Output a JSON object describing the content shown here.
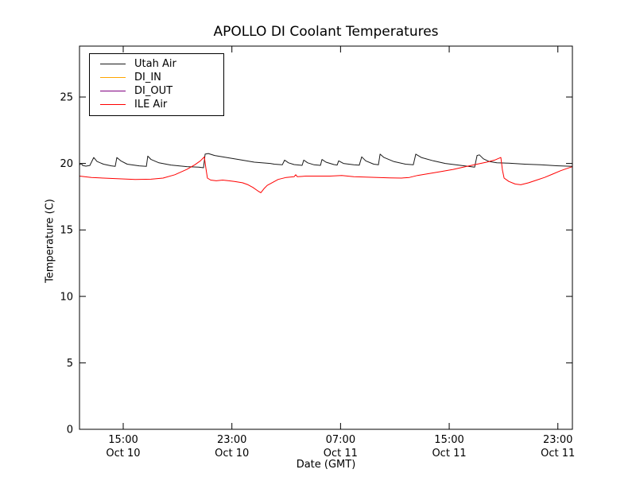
{
  "figure": {
    "background": "#ffffff",
    "spine_color": "#000000"
  },
  "chart_data": {
    "type": "line",
    "title": "APOLLO DI Coolant Temperatures",
    "xlabel": "Date (GMT)",
    "ylabel": "Temperature (C)",
    "x_unit": "hours since Oct 10 00:00 GMT",
    "xlim": [
      11.78,
      48.07
    ],
    "ylim": [
      0,
      28.83
    ],
    "grid": false,
    "legend_position": "upper left",
    "yticks": [
      0,
      5,
      10,
      15,
      20,
      25
    ],
    "xticks": [
      {
        "value": 15,
        "line1": "15:00",
        "line2": "Oct 10"
      },
      {
        "value": 23,
        "line1": "23:00",
        "line2": "Oct 10"
      },
      {
        "value": 31,
        "line1": "07:00",
        "line2": "Oct 11"
      },
      {
        "value": 39,
        "line1": "15:00",
        "line2": "Oct 11"
      },
      {
        "value": 47,
        "line1": "23:00",
        "line2": "Oct 11"
      }
    ],
    "series": [
      {
        "name": "Utah Air",
        "color": "#1a1a1a",
        "points": [
          [
            11.78,
            19.9
          ],
          [
            11.9,
            20.0
          ],
          [
            12.01,
            19.85
          ],
          [
            12.25,
            19.8
          ],
          [
            12.54,
            19.85
          ],
          [
            12.83,
            20.45
          ],
          [
            13.07,
            20.15
          ],
          [
            13.54,
            19.95
          ],
          [
            14.12,
            19.82
          ],
          [
            14.41,
            19.78
          ],
          [
            14.53,
            20.45
          ],
          [
            14.82,
            20.2
          ],
          [
            15.29,
            19.95
          ],
          [
            16.17,
            19.82
          ],
          [
            16.7,
            19.78
          ],
          [
            16.81,
            20.55
          ],
          [
            17.05,
            20.3
          ],
          [
            17.63,
            20.05
          ],
          [
            18.51,
            19.88
          ],
          [
            19.68,
            19.76
          ],
          [
            20.56,
            19.72
          ],
          [
            20.91,
            19.68
          ],
          [
            21.03,
            20.7
          ],
          [
            21.26,
            20.75
          ],
          [
            21.73,
            20.6
          ],
          [
            22.61,
            20.45
          ],
          [
            23.49,
            20.3
          ],
          [
            24.66,
            20.1
          ],
          [
            25.83,
            20.0
          ],
          [
            26.12,
            19.95
          ],
          [
            26.71,
            19.9
          ],
          [
            26.88,
            20.25
          ],
          [
            27.17,
            20.05
          ],
          [
            27.58,
            19.92
          ],
          [
            28.17,
            19.86
          ],
          [
            28.29,
            20.25
          ],
          [
            28.58,
            20.05
          ],
          [
            29.05,
            19.9
          ],
          [
            29.52,
            19.86
          ],
          [
            29.63,
            20.3
          ],
          [
            29.93,
            20.1
          ],
          [
            30.51,
            19.92
          ],
          [
            30.75,
            19.88
          ],
          [
            30.86,
            20.2
          ],
          [
            31.21,
            20.0
          ],
          [
            31.97,
            19.9
          ],
          [
            32.38,
            19.87
          ],
          [
            32.56,
            20.5
          ],
          [
            32.85,
            20.2
          ],
          [
            33.44,
            19.95
          ],
          [
            33.79,
            19.9
          ],
          [
            33.91,
            20.7
          ],
          [
            34.2,
            20.45
          ],
          [
            34.9,
            20.15
          ],
          [
            35.78,
            19.95
          ],
          [
            36.36,
            19.9
          ],
          [
            36.54,
            20.7
          ],
          [
            36.95,
            20.45
          ],
          [
            37.83,
            20.2
          ],
          [
            38.71,
            20.0
          ],
          [
            39.88,
            19.85
          ],
          [
            40.87,
            19.72
          ],
          [
            41.05,
            20.6
          ],
          [
            41.22,
            20.65
          ],
          [
            41.52,
            20.35
          ],
          [
            41.93,
            20.15
          ],
          [
            42.51,
            20.05
          ],
          [
            43.39,
            20.02
          ],
          [
            44.56,
            19.95
          ],
          [
            45.73,
            19.9
          ],
          [
            46.9,
            19.83
          ],
          [
            48.07,
            19.78
          ]
        ]
      },
      {
        "name": "DI_IN",
        "color": "#ffa500",
        "points": [
          [
            11.78,
            0
          ],
          [
            48.07,
            0
          ]
        ]
      },
      {
        "name": "DI_OUT",
        "color": "#800080",
        "points": [
          [
            11.78,
            0
          ],
          [
            48.07,
            0
          ]
        ]
      },
      {
        "name": "ILE Air",
        "color": "#ff0000",
        "points": [
          [
            11.78,
            19.05
          ],
          [
            12.66,
            18.95
          ],
          [
            13.54,
            18.9
          ],
          [
            14.71,
            18.85
          ],
          [
            15.88,
            18.8
          ],
          [
            17.05,
            18.82
          ],
          [
            17.93,
            18.9
          ],
          [
            18.8,
            19.15
          ],
          [
            19.68,
            19.55
          ],
          [
            20.27,
            19.9
          ],
          [
            20.68,
            20.2
          ],
          [
            20.97,
            20.5
          ],
          [
            21.09,
            19.6
          ],
          [
            21.2,
            18.9
          ],
          [
            21.44,
            18.75
          ],
          [
            21.85,
            18.7
          ],
          [
            22.32,
            18.75
          ],
          [
            22.78,
            18.7
          ],
          [
            23.19,
            18.65
          ],
          [
            23.78,
            18.55
          ],
          [
            24.19,
            18.4
          ],
          [
            24.54,
            18.2
          ],
          [
            24.89,
            17.95
          ],
          [
            25.13,
            17.8
          ],
          [
            25.36,
            18.1
          ],
          [
            25.6,
            18.35
          ],
          [
            25.95,
            18.55
          ],
          [
            26.41,
            18.8
          ],
          [
            27.0,
            18.95
          ],
          [
            27.58,
            19.0
          ],
          [
            27.7,
            19.15
          ],
          [
            27.82,
            19.0
          ],
          [
            28.46,
            19.05
          ],
          [
            29.34,
            19.05
          ],
          [
            30.22,
            19.05
          ],
          [
            31.09,
            19.1
          ],
          [
            31.97,
            19.0
          ],
          [
            32.85,
            18.97
          ],
          [
            33.73,
            18.95
          ],
          [
            34.61,
            18.92
          ],
          [
            35.49,
            18.9
          ],
          [
            36.07,
            18.95
          ],
          [
            36.66,
            19.1
          ],
          [
            37.54,
            19.25
          ],
          [
            38.41,
            19.4
          ],
          [
            39.29,
            19.55
          ],
          [
            40.17,
            19.75
          ],
          [
            41.05,
            19.95
          ],
          [
            41.75,
            20.1
          ],
          [
            42.34,
            20.25
          ],
          [
            42.8,
            20.45
          ],
          [
            42.92,
            19.5
          ],
          [
            43.04,
            18.9
          ],
          [
            43.39,
            18.65
          ],
          [
            43.86,
            18.45
          ],
          [
            44.27,
            18.4
          ],
          [
            44.85,
            18.55
          ],
          [
            45.44,
            18.75
          ],
          [
            46.02,
            18.95
          ],
          [
            46.61,
            19.2
          ],
          [
            47.19,
            19.45
          ],
          [
            47.6,
            19.6
          ],
          [
            47.95,
            19.72
          ],
          [
            48.07,
            19.75
          ]
        ]
      }
    ]
  }
}
